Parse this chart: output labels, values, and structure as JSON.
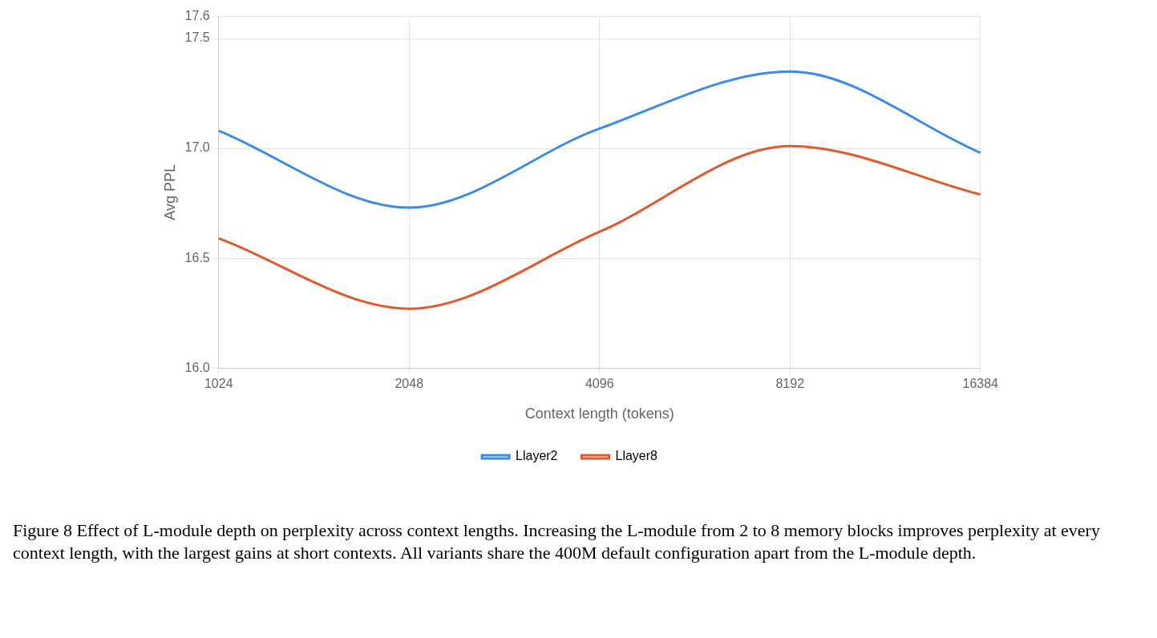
{
  "chart_data": {
    "type": "line",
    "xlabel": "Context length (tokens)",
    "ylabel": "Avg PPL",
    "categories": [
      "1024",
      "2048",
      "4096",
      "8192",
      "16384"
    ],
    "series": [
      {
        "name": "Llayer2",
        "color": "#3b8beb",
        "values": [
          17.08,
          16.73,
          17.09,
          17.35,
          16.98
        ]
      },
      {
        "name": "Llayer8",
        "color": "#e05a2b",
        "values": [
          16.59,
          16.27,
          16.62,
          17.01,
          16.79
        ]
      }
    ],
    "ylim": [
      16.0,
      17.6
    ],
    "yticks": [
      {
        "value": 16,
        "label": "16.0"
      },
      {
        "value": 16.5,
        "label": "16.5"
      },
      {
        "value": 17,
        "label": "17.0"
      },
      {
        "value": 17.5,
        "label": "17.5"
      },
      {
        "value": 17.6,
        "label": "17.6"
      }
    ],
    "grid": true,
    "legend": "bottom",
    "marker": "none",
    "line_style": "solid",
    "annotations": [
      "Figure 8 Effect of L-module depth on perplexity across context lengths. Increasing the L-module from 2 to 8 memory blocks improves perplexity at every context length, with the largest gains at short contexts. All variants share the 400M default configuration apart from the L-module depth."
    ]
  }
}
